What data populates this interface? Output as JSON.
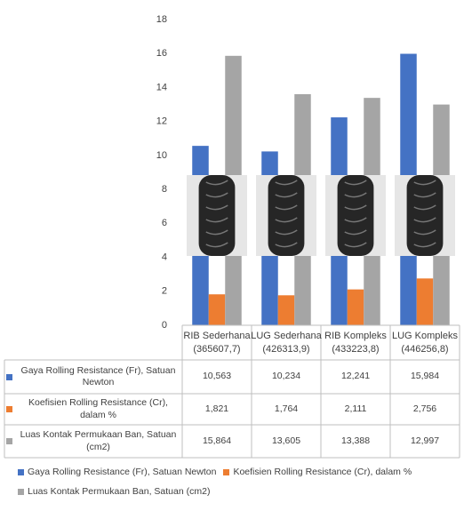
{
  "chart_data": {
    "type": "bar",
    "categories": [
      "RIB Sederhana",
      "LUG Sederhana",
      "RIB Kompleks",
      "LUG Kompleks"
    ],
    "category_notes": [
      "(365607,7)",
      "(426313,9)",
      "(433223,8)",
      "(446256,8)"
    ],
    "series": [
      {
        "name": "Gaya Rolling Resistance (Fr), Satuan Newton",
        "color": "#4472c4",
        "values": [
          10.563,
          10.234,
          12.241,
          15.984
        ],
        "value_labels": [
          "10,563",
          "10,234",
          "12,241",
          "15,984"
        ]
      },
      {
        "name": "Koefisien Rolling Resistance (Cr), dalam %",
        "color": "#ed7d31",
        "values": [
          1.821,
          1.764,
          2.111,
          2.756
        ],
        "value_labels": [
          "1,821",
          "1,764",
          "2,111",
          "2,756"
        ]
      },
      {
        "name": "Luas Kontak Permukaan Ban, Satuan (cm2)",
        "color": "#a5a5a5",
        "values": [
          15.864,
          13.605,
          13.388,
          12.997
        ],
        "value_labels": [
          "15,864",
          "13,605",
          "13,388",
          "12,997"
        ]
      }
    ],
    "ylim": [
      0,
      18
    ],
    "yticks": [
      0,
      2,
      4,
      6,
      8,
      10,
      12,
      14,
      16,
      18
    ],
    "grid": false
  }
}
